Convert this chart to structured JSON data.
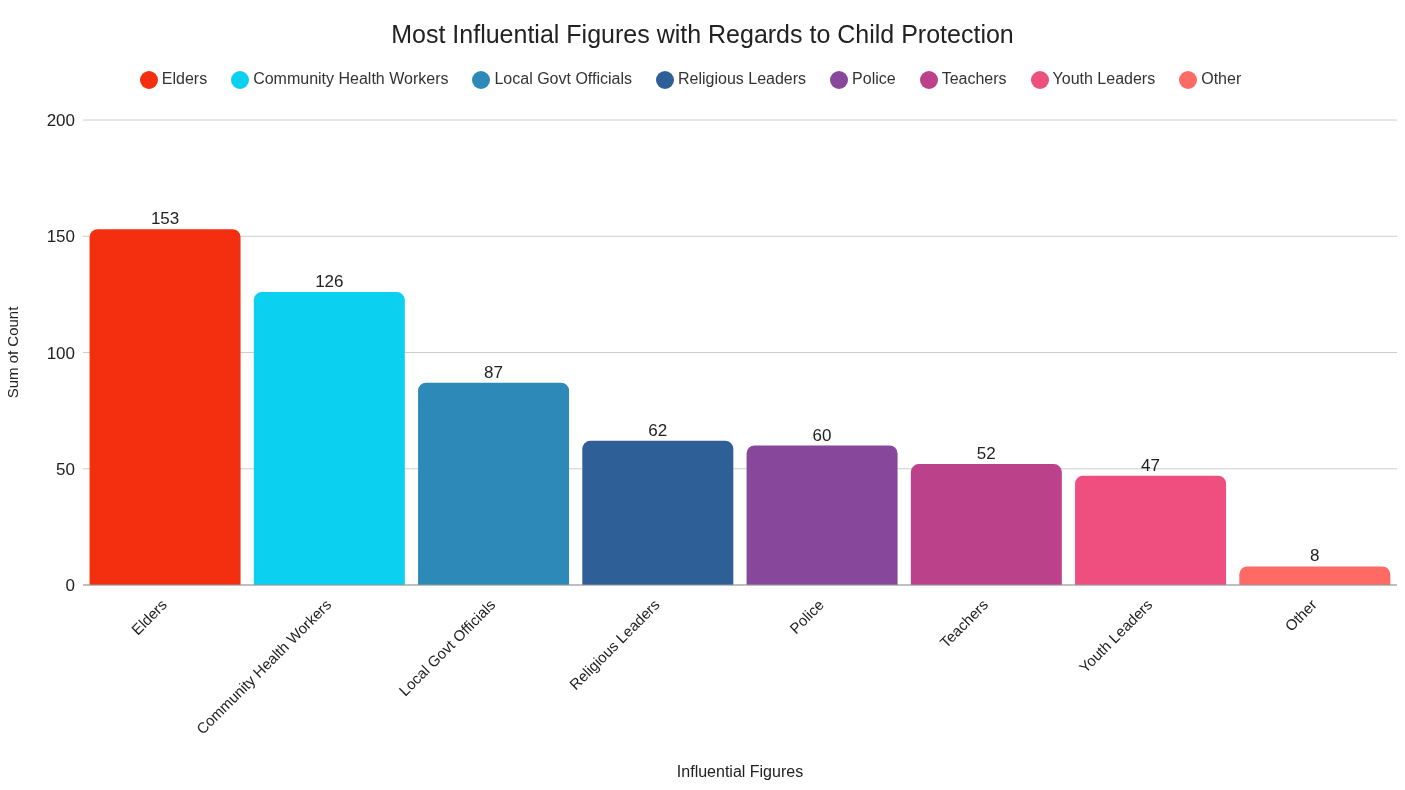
{
  "chart_data": {
    "type": "bar",
    "title": "Most Influential Figures with Regards to Child Protection",
    "xlabel": "Influential Figures",
    "ylabel": "Sum of Count",
    "categories": [
      "Elders",
      "Community Health Workers",
      "Local Govt Officials",
      "Religious Leaders",
      "Police",
      "Teachers",
      "Youth Leaders",
      "Other"
    ],
    "series": [
      {
        "name": "Elders",
        "color": "#f42f10",
        "values": [
          153,
          null,
          null,
          null,
          null,
          null,
          null,
          null
        ]
      },
      {
        "name": "Community Health Workers",
        "color": "#0bd0f0",
        "values": [
          null,
          126,
          null,
          null,
          null,
          null,
          null,
          null
        ]
      },
      {
        "name": "Local Govt Officials",
        "color": "#2d8ab8",
        "values": [
          null,
          null,
          87,
          null,
          null,
          null,
          null,
          null
        ]
      },
      {
        "name": "Religious Leaders",
        "color": "#2e5f96",
        "values": [
          null,
          null,
          null,
          62,
          null,
          null,
          null,
          null
        ]
      },
      {
        "name": "Police",
        "color": "#87489b",
        "values": [
          null,
          null,
          null,
          null,
          60,
          null,
          null,
          null
        ]
      },
      {
        "name": "Teachers",
        "color": "#bb418b",
        "values": [
          null,
          null,
          null,
          null,
          null,
          52,
          null,
          null
        ]
      },
      {
        "name": "Youth Leaders",
        "color": "#ee4f7f",
        "values": [
          null,
          null,
          null,
          null,
          null,
          null,
          47,
          null
        ]
      },
      {
        "name": "Other",
        "color": "#ff6a65",
        "values": [
          null,
          null,
          null,
          null,
          null,
          null,
          null,
          8
        ]
      }
    ],
    "stacked": true,
    "ylim": [
      0,
      200
    ],
    "yticks": [
      0,
      50,
      100,
      150,
      200
    ],
    "grid": "y",
    "legend": "top",
    "data_labels": true
  }
}
